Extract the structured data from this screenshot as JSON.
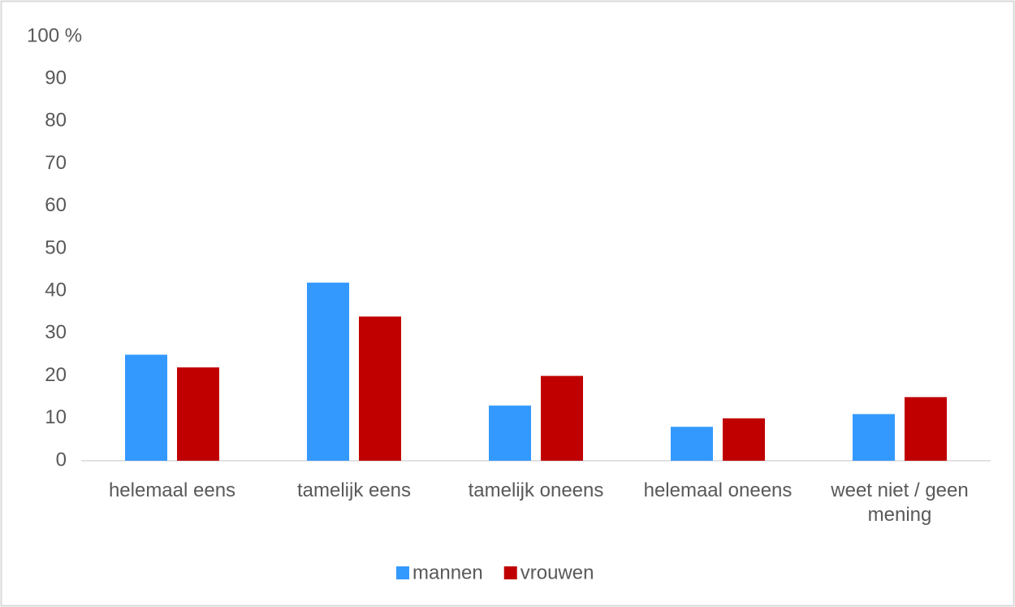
{
  "chart_data": {
    "type": "bar",
    "categories": [
      "helemaal eens",
      "tamelijk eens",
      "tamelijk oneens",
      "helemaal oneens",
      "weet niet / geen mening"
    ],
    "series": [
      {
        "name": "mannen",
        "color": "#3399ff",
        "values": [
          25,
          42,
          13,
          8,
          11
        ]
      },
      {
        "name": "vrouwen",
        "color": "#c00000",
        "values": [
          22,
          34,
          20,
          10,
          15
        ]
      }
    ],
    "ylim": [
      0,
      100
    ],
    "yticks": [
      0,
      10,
      20,
      30,
      40,
      50,
      60,
      70,
      80,
      90,
      {
        "value": 100,
        "label": "100 %"
      }
    ],
    "grid": false,
    "legend": "bottom"
  }
}
